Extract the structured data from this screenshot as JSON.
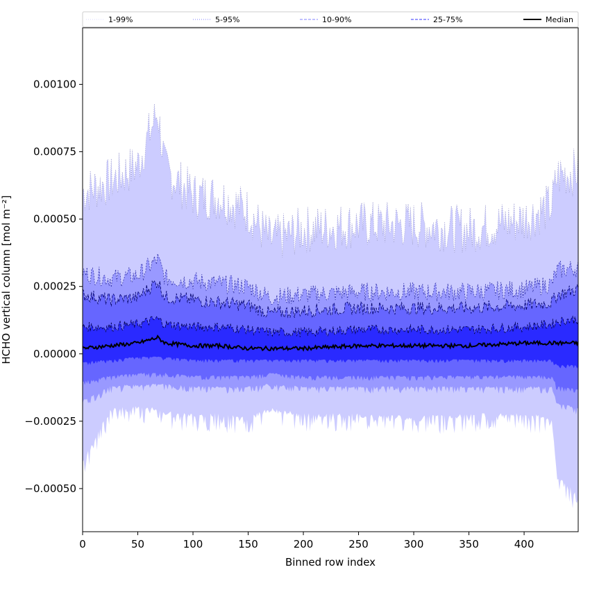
{
  "chart_data": {
    "type": "area",
    "xlabel": "Binned row index",
    "ylabel": "HCHO vertical column [mol m⁻²]",
    "xlim": [
      0,
      449
    ],
    "ylim": [
      -0.00066,
      0.00121
    ],
    "xticks": [
      0,
      50,
      100,
      150,
      200,
      250,
      300,
      350,
      400
    ],
    "xtick_labels": [
      "0",
      "50",
      "100",
      "150",
      "200",
      "250",
      "300",
      "350",
      "400"
    ],
    "yticks": [
      -0.0005,
      -0.00025,
      0.0,
      0.00025,
      0.0005,
      0.00075,
      0.001
    ],
    "ytick_labels": [
      "−0.00050",
      "−0.00025",
      "0.00000",
      "0.00025",
      "0.00050",
      "0.00075",
      "0.00100"
    ],
    "grid": false,
    "legend": {
      "placement": "top",
      "entries": [
        {
          "label": "1-99%",
          "color": "#d9d9ff",
          "style": "dotted"
        },
        {
          "label": "5-95%",
          "color": "#8080ff",
          "style": "dotted"
        },
        {
          "label": "10-90%",
          "color": "#8080ff",
          "style": "dashed"
        },
        {
          "label": "25-75%",
          "color": "#3333ff",
          "style": "dashed"
        },
        {
          "label": "Median",
          "color": "#000000",
          "style": "solid"
        }
      ]
    },
    "x": [
      0,
      25,
      50,
      68,
      75,
      100,
      125,
      150,
      170,
      200,
      250,
      300,
      350,
      400,
      425,
      430,
      449
    ],
    "series": [
      {
        "name": "1-99%",
        "color": "#ccccff",
        "lower": [
          -0.0004,
          -0.0002,
          -0.00019,
          -0.0002,
          -0.00021,
          -0.00022,
          -0.00022,
          -0.00023,
          -0.0002,
          -0.00022,
          -0.00022,
          -0.00023,
          -0.00022,
          -0.00022,
          -0.00023,
          -0.00045,
          -0.00052
        ],
        "upper": [
          0.0006,
          0.00064,
          0.0007,
          0.0009,
          0.00068,
          0.00059,
          0.00058,
          0.00053,
          0.00042,
          0.00046,
          0.00048,
          0.00048,
          0.00046,
          0.0005,
          0.00055,
          0.00066,
          0.00068
        ]
      },
      {
        "name": "5-95%",
        "color": "#9999ff",
        "lower": [
          -0.00017,
          -0.00012,
          -0.00011,
          -0.00011,
          -0.00011,
          -0.00012,
          -0.00012,
          -0.00012,
          -0.00011,
          -0.00012,
          -0.00012,
          -0.00012,
          -0.00012,
          -0.00012,
          -0.00012,
          -0.00018,
          -0.0002
        ],
        "upper": [
          0.0003,
          0.00028,
          0.00029,
          0.00035,
          0.00028,
          0.00027,
          0.00026,
          0.00025,
          0.00021,
          0.00022,
          0.00023,
          0.00023,
          0.00023,
          0.00024,
          0.00026,
          0.00031,
          0.00032
        ]
      },
      {
        "name": "10-90%",
        "color": "#6666ff",
        "lower": [
          -0.0001,
          -8e-05,
          -7e-05,
          -7e-05,
          -7e-05,
          -8e-05,
          -8e-05,
          -8e-05,
          -7e-05,
          -8e-05,
          -8e-05,
          -8e-05,
          -8e-05,
          -8e-05,
          -8e-05,
          -0.00012,
          -0.00013
        ],
        "upper": [
          0.00022,
          0.0002,
          0.00021,
          0.00027,
          0.00021,
          0.0002,
          0.00019,
          0.00018,
          0.00015,
          0.00016,
          0.00017,
          0.00017,
          0.00017,
          0.00018,
          0.00019,
          0.00022,
          0.00024
        ]
      },
      {
        "name": "25-75%",
        "color": "#2a2aff",
        "lower": [
          -3e-05,
          -2e-05,
          -1e-05,
          -1e-05,
          -1e-05,
          -2e-05,
          -2e-05,
          -2e-05,
          -2e-05,
          -2e-05,
          -2e-05,
          -2e-05,
          -2e-05,
          -2e-05,
          -2e-05,
          -4e-05,
          -4e-05
        ],
        "upper": [
          0.0001,
          0.0001,
          0.00011,
          0.00013,
          0.00011,
          0.0001,
          0.0001,
          9e-05,
          8e-05,
          8e-05,
          9e-05,
          9e-05,
          9e-05,
          0.0001,
          0.00011,
          0.00012,
          0.00013
        ]
      },
      {
        "name": "Median",
        "color": "#000000",
        "values": [
          2e-05,
          3e-05,
          4e-05,
          6e-05,
          4e-05,
          3e-05,
          3e-05,
          2e-05,
          2e-05,
          2e-05,
          3e-05,
          3e-05,
          3e-05,
          4e-05,
          4e-05,
          4e-05,
          4e-05
        ]
      }
    ]
  }
}
